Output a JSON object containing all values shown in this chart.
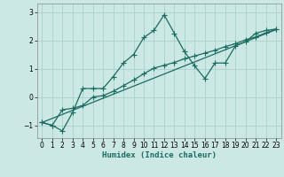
{
  "xlabel": "Humidex (Indice chaleur)",
  "bg_color": "#cce8e5",
  "line_color": "#1a6b60",
  "grid_color": "#aacfcc",
  "xlim": [
    -0.5,
    23.5
  ],
  "ylim": [
    -1.45,
    3.3
  ],
  "yticks": [
    -1,
    0,
    1,
    2,
    3
  ],
  "xticks": [
    0,
    1,
    2,
    3,
    4,
    5,
    6,
    7,
    8,
    9,
    10,
    11,
    12,
    13,
    14,
    15,
    16,
    17,
    18,
    19,
    20,
    21,
    22,
    23
  ],
  "line1_x": [
    0,
    1,
    2,
    3,
    4,
    5,
    6,
    7,
    8,
    9,
    10,
    11,
    12,
    13,
    14,
    15,
    16,
    17,
    18,
    19,
    20,
    21,
    22,
    23
  ],
  "line1_y": [
    -0.9,
    -1.0,
    -1.2,
    -0.55,
    0.3,
    0.3,
    0.3,
    0.72,
    1.2,
    1.5,
    2.1,
    2.35,
    2.9,
    2.25,
    1.6,
    1.1,
    0.65,
    1.2,
    1.2,
    1.8,
    1.95,
    2.25,
    2.35,
    2.4
  ],
  "line2_x": [
    0,
    1,
    2,
    3,
    4,
    5,
    6,
    7,
    8,
    9,
    10,
    11,
    12,
    13,
    14,
    15,
    16,
    17,
    18,
    19,
    20,
    21,
    22,
    23
  ],
  "line2_y": [
    -0.9,
    -1.0,
    -0.45,
    -0.4,
    -0.3,
    0.0,
    0.05,
    0.2,
    0.4,
    0.6,
    0.82,
    1.02,
    1.12,
    1.22,
    1.35,
    1.45,
    1.55,
    1.65,
    1.78,
    1.88,
    2.02,
    2.12,
    2.27,
    2.38
  ],
  "line3_x": [
    0,
    23
  ],
  "line3_y": [
    -0.9,
    2.38
  ],
  "marker_size": 2.5,
  "linewidth": 0.9
}
